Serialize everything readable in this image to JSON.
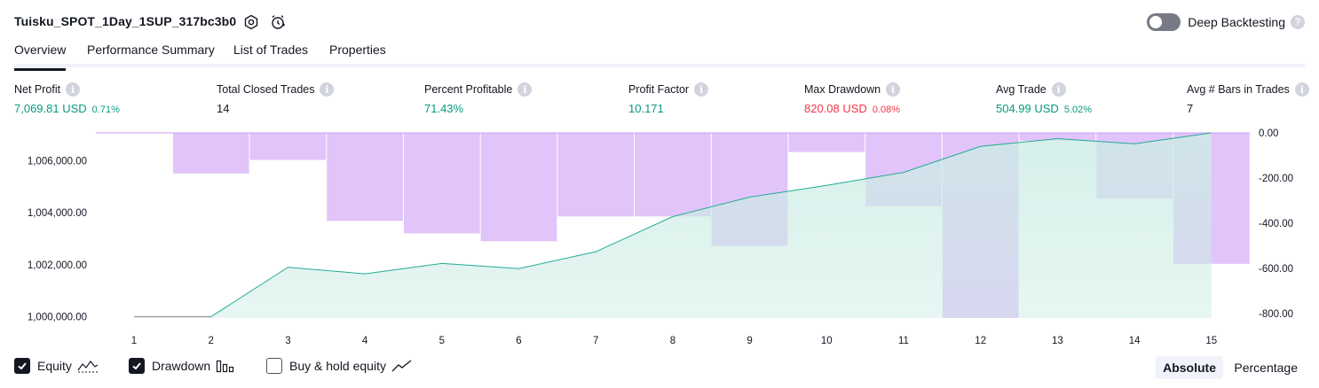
{
  "header": {
    "strategy_name": "Tuisku_SPOT_1Day_1SUP_317bc3b0",
    "settings_icon": "gear-icon",
    "alert_icon": "alarm-clock-icon",
    "deep_backtesting_label": "Deep Backtesting",
    "deep_backtesting_enabled": false,
    "help_icon": "question-icon"
  },
  "tabs": [
    {
      "label": "Overview",
      "active": true
    },
    {
      "label": "Performance Summary",
      "active": false
    },
    {
      "label": "List of Trades",
      "active": false
    },
    {
      "label": "Properties",
      "active": false
    }
  ],
  "metrics": {
    "net_profit": {
      "label": "Net Profit",
      "value": "7,069.81 USD",
      "pct": "0.71%"
    },
    "total_closed_trades": {
      "label": "Total Closed Trades",
      "value": "14"
    },
    "percent_profitable": {
      "label": "Percent Profitable",
      "value": "71.43%"
    },
    "profit_factor": {
      "label": "Profit Factor",
      "value": "10.171"
    },
    "max_drawdown": {
      "label": "Max Drawdown",
      "value": "820.08 USD",
      "pct": "0.08%"
    },
    "avg_trade": {
      "label": "Avg Trade",
      "value": "504.99 USD",
      "pct": "5.02%"
    },
    "avg_bars": {
      "label": "Avg # Bars in Trades",
      "value": "7"
    }
  },
  "colors": {
    "equity_line": "#22ab94",
    "equity_fill": "#ccece5",
    "drawdown": "#cf9ff5",
    "profit_green": "#089981",
    "loss_red": "#f23645",
    "text": "#131722"
  },
  "chart_data": {
    "type": "area",
    "x": [
      1,
      2,
      3,
      4,
      5,
      6,
      7,
      8,
      9,
      10,
      11,
      12,
      13,
      14,
      15
    ],
    "series": [
      {
        "name": "Equity",
        "axis": "left",
        "values": [
          1000000,
          1000000,
          1001900,
          1001650,
          1002050,
          1001850,
          1002500,
          1003850,
          1004600,
          1005050,
          1005550,
          1006550,
          1006850,
          1006650,
          1007070
        ]
      },
      {
        "name": "Drawdown",
        "axis": "right",
        "kind": "bar",
        "values": [
          0,
          -180,
          -120,
          -390,
          -445,
          -480,
          -370,
          -370,
          -500,
          -85,
          -325,
          -820,
          -35,
          -290,
          -580
        ]
      }
    ],
    "left_axis": {
      "ticks": [
        "1,000,000.00",
        "1,002,000.00",
        "1,004,000.00",
        "1,006,000.00"
      ],
      "tick_values": [
        1000000,
        1002000,
        1004000,
        1006000
      ],
      "range": [
        999950,
        1007070
      ]
    },
    "right_axis": {
      "ticks": [
        "0.00",
        "-200.00",
        "-400.00",
        "-600.00",
        "-800.00"
      ],
      "tick_values": [
        0,
        -200,
        -400,
        -600,
        -800
      ],
      "range": [
        -820,
        0
      ]
    },
    "x_ticks": [
      "1",
      "2",
      "3",
      "4",
      "5",
      "6",
      "7",
      "8",
      "9",
      "10",
      "11",
      "12",
      "13",
      "14",
      "15"
    ]
  },
  "legend_toggles": [
    {
      "label": "Equity",
      "checked": true,
      "icon": "equity-line-icon"
    },
    {
      "label": "Drawdown",
      "checked": true,
      "icon": "drawdown-bars-icon"
    },
    {
      "label": "Buy & hold equity",
      "checked": false,
      "icon": "buy-hold-line-icon"
    }
  ],
  "scale_modes": [
    {
      "label": "Absolute",
      "active": true
    },
    {
      "label": "Percentage",
      "active": false
    }
  ]
}
